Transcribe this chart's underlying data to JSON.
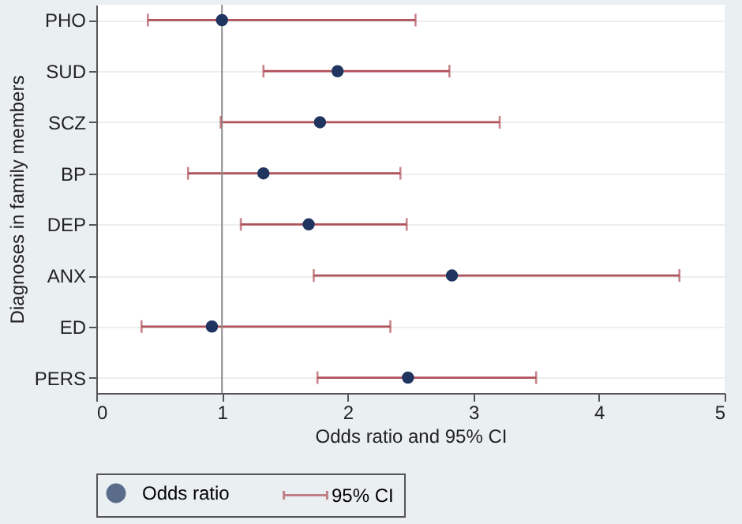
{
  "chart_data": {
    "type": "scatter",
    "xlabel": "Odds ratio and 95% CI",
    "ylabel": "Diagnoses in family members",
    "categories": [
      "PHO",
      "SUD",
      "SCZ",
      "BP",
      "DEP",
      "ANX",
      "ED",
      "PERS"
    ],
    "orientation": "horizontal",
    "series": [
      {
        "name": "Odds ratio",
        "color": "#1f3560",
        "values": [
          1.0,
          1.92,
          1.78,
          1.33,
          1.69,
          2.83,
          0.92,
          2.48
        ],
        "errors": [
          [
            0.41,
            2.54
          ],
          [
            1.33,
            2.81
          ],
          [
            0.99,
            3.21
          ],
          [
            0.73,
            2.42
          ],
          [
            1.15,
            2.47
          ],
          [
            1.73,
            4.64
          ],
          [
            0.36,
            2.34
          ],
          [
            1.76,
            3.5
          ]
        ]
      }
    ],
    "annotations": [
      "95% CI"
    ],
    "xlim": [
      0,
      5
    ],
    "xticks": [
      0,
      1,
      2,
      3,
      4,
      5
    ],
    "ref_lines": [
      {
        "axis": "x",
        "value": 1,
        "color": "#8c8c8c"
      }
    ],
    "grid": "y",
    "legend": "bottom",
    "marker": "circle"
  }
}
